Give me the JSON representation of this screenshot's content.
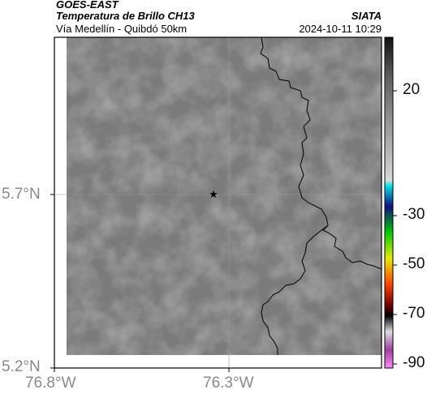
{
  "header": {
    "satellite": "GOES-EAST",
    "product": "Temperatura de Brillo CH13",
    "region": "Vía Medellín - Quibdó 50km",
    "organization": "SIATA",
    "timestamp": "2024-10-11 10:29"
  },
  "map": {
    "background_color": "#7b7b7b",
    "coast_color": "#000000",
    "marker": "star-icon",
    "lat_labels": [
      "5.7°N",
      "5.2°N"
    ],
    "lon_labels": [
      "76.8°W",
      "76.3°W"
    ]
  },
  "colorbar": {
    "tick_labels": [
      "20",
      "-30",
      "-50",
      "-70",
      "-90"
    ],
    "stops": [
      {
        "v": 35,
        "c": "#111111"
      },
      {
        "v": 20,
        "c": "#5e5e5e"
      },
      {
        "v": -20,
        "c": "#d8d8d8"
      },
      {
        "v": -22,
        "c": "#00e5e5"
      },
      {
        "v": -30,
        "c": "#101080"
      },
      {
        "v": -40,
        "c": "#00cc00"
      },
      {
        "v": -50,
        "c": "#e8e800"
      },
      {
        "v": -60,
        "c": "#ff4000"
      },
      {
        "v": -68,
        "c": "#700000"
      },
      {
        "v": -72,
        "c": "#000000"
      },
      {
        "v": -78,
        "c": "#dddddd"
      },
      {
        "v": -85,
        "c": "#a040a0"
      },
      {
        "v": -92,
        "c": "#ff88ff"
      }
    ]
  }
}
